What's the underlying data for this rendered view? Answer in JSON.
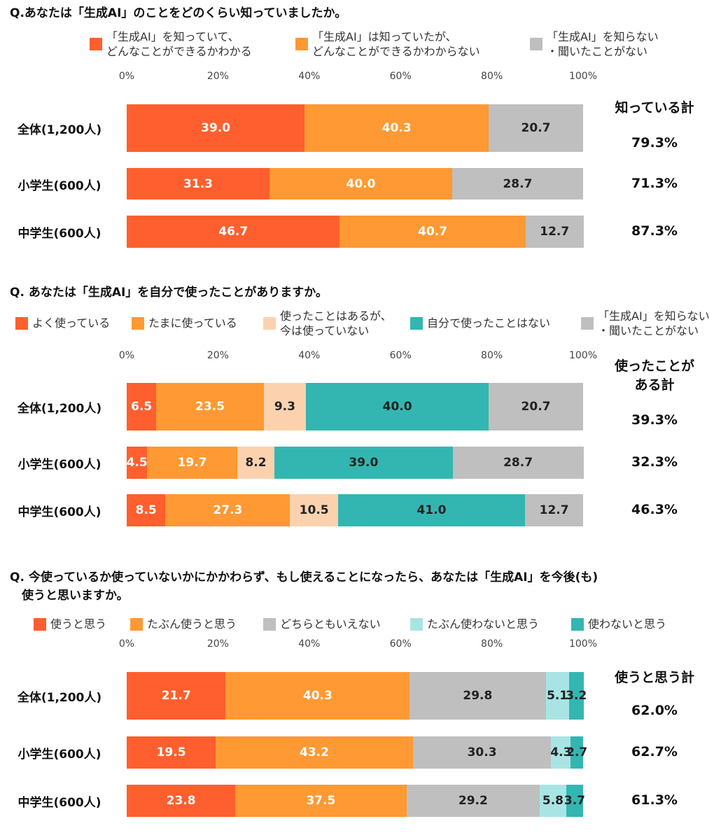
{
  "colors": {
    "red": "#FF5F2E",
    "orange": "#FF9933",
    "gray": "#BFBFBF",
    "peach": "#FCD2AE",
    "teal": "#33B6B1",
    "lightteal": "#A9E4E4"
  },
  "chart_data": [
    {
      "type": "bar",
      "stacked": true,
      "orientation": "horizontal",
      "title": "Q.あなたは「生成AI」のことをどのくらい知っていましたか。",
      "ticks": [
        "0%",
        "20%",
        "40%",
        "60%",
        "80%",
        "100%"
      ],
      "xlim": [
        0,
        100
      ],
      "legend": [
        {
          "name": "「生成AI」を知っていて、\nどんなことができるかわかる",
          "color": "#FF5F2E"
        },
        {
          "name": "「生成AI」は知っていたが、\nどんなことができるかわからない",
          "color": "#FF9933"
        },
        {
          "name": "「生成AI」を知らない\n・聞いたことがない",
          "color": "#BFBFBF"
        }
      ],
      "total_header": "知っている計",
      "categories": [
        "全体(1,200人)",
        "小学生(600人)",
        "中学生(600人)"
      ],
      "rows": [
        {
          "values": [
            39.0,
            40.3,
            20.7
          ],
          "labels": [
            "39.0",
            "40.3",
            "20.7"
          ],
          "total": "79.3%"
        },
        {
          "values": [
            31.3,
            40.0,
            28.7
          ],
          "labels": [
            "31.3",
            "40.0",
            "28.7"
          ],
          "total": "71.3%"
        },
        {
          "values": [
            46.7,
            40.7,
            12.7
          ],
          "labels": [
            "46.7",
            "40.7",
            "12.7"
          ],
          "total": "87.3%"
        }
      ]
    },
    {
      "type": "bar",
      "stacked": true,
      "orientation": "horizontal",
      "title": "Q. あなたは「生成AI」を自分で使ったことがありますか。",
      "ticks": [
        "0%",
        "20%",
        "40%",
        "60%",
        "80%",
        "100%"
      ],
      "xlim": [
        0,
        100
      ],
      "legend": [
        {
          "name": "よく使っている",
          "color": "#FF5F2E"
        },
        {
          "name": "たまに使っている",
          "color": "#FF9933"
        },
        {
          "name": "使ったことはあるが、\n今は使っていない",
          "color": "#FCD2AE"
        },
        {
          "name": "自分で使ったことはない",
          "color": "#33B6B1"
        },
        {
          "name": "「生成AI」を知らない\n・聞いたことがない",
          "color": "#BFBFBF"
        }
      ],
      "total_header": "使ったことが\nある計",
      "categories": [
        "全体(1,200人)",
        "小学生(600人)",
        "中学生(600人)"
      ],
      "rows": [
        {
          "values": [
            6.5,
            23.5,
            9.3,
            40.0,
            20.7
          ],
          "labels": [
            "6.5",
            "23.5",
            "9.3",
            "40.0",
            "20.7"
          ],
          "total": "39.3%"
        },
        {
          "values": [
            4.5,
            19.7,
            8.2,
            39.0,
            28.7
          ],
          "labels": [
            "4.5",
            "19.7",
            "8.2",
            "39.0",
            "28.7"
          ],
          "total": "32.3%"
        },
        {
          "values": [
            8.5,
            27.3,
            10.5,
            41.0,
            12.7
          ],
          "labels": [
            "8.5",
            "27.3",
            "10.5",
            "41.0",
            "12.7"
          ],
          "total": "46.3%"
        }
      ]
    },
    {
      "type": "bar",
      "stacked": true,
      "orientation": "horizontal",
      "title": "Q. 今使っているか使っていないかにかかわらず、もし使えることになったら、あなたは「生成AI」を今後(も)\n　使うと思いますか。",
      "ticks": [
        "0%",
        "20%",
        "40%",
        "60%",
        "80%",
        "100%"
      ],
      "xlim": [
        0,
        100
      ],
      "legend": [
        {
          "name": "使うと思う",
          "color": "#FF5F2E"
        },
        {
          "name": "たぶん使うと思う",
          "color": "#FF9933"
        },
        {
          "name": "どちらともいえない",
          "color": "#BFBFBF"
        },
        {
          "name": "たぶん使わないと思う",
          "color": "#A9E4E4"
        },
        {
          "name": "使わないと思う",
          "color": "#33B6B1"
        }
      ],
      "total_header": "使うと思う計",
      "categories": [
        "全体(1,200人)",
        "小学生(600人)",
        "中学生(600人)"
      ],
      "rows": [
        {
          "values": [
            21.7,
            40.3,
            29.8,
            5.1,
            3.2
          ],
          "labels": [
            "21.7",
            "40.3",
            "29.8",
            "5.1",
            "3.2"
          ],
          "total": "62.0%"
        },
        {
          "values": [
            19.5,
            43.2,
            30.3,
            4.3,
            2.7
          ],
          "labels": [
            "19.5",
            "43.2",
            "30.3",
            "4.3",
            "2.7"
          ],
          "total": "62.7%"
        },
        {
          "values": [
            23.8,
            37.5,
            29.2,
            5.8,
            3.7
          ],
          "labels": [
            "23.8",
            "37.5",
            "29.2",
            "5.8",
            "3.7"
          ],
          "total": "61.3%"
        }
      ]
    }
  ]
}
